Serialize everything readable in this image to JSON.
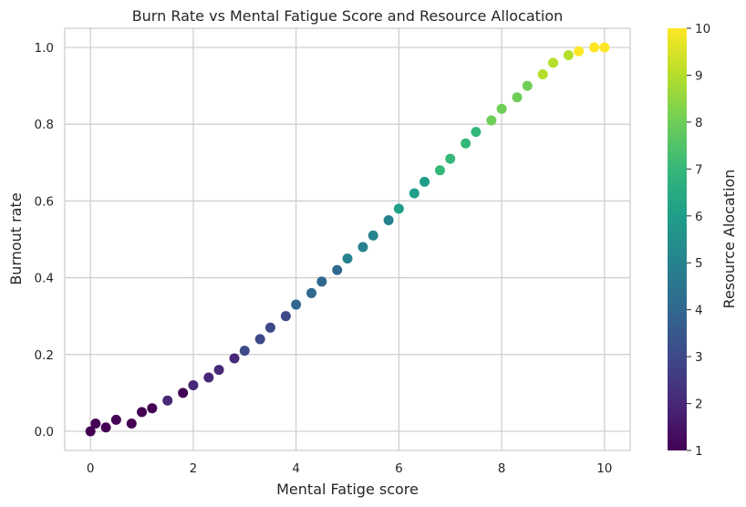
{
  "chart_data": {
    "type": "scatter",
    "title": "Burn Rate vs Mental Fatigue Score and Resource Allocation",
    "xlabel": "Mental Fatige score",
    "ylabel": "Burnout rate",
    "xlim": [
      -0.5,
      10.5
    ],
    "ylim": [
      -0.05,
      1.05
    ],
    "xticks": [
      0,
      2,
      4,
      6,
      8,
      10
    ],
    "yticks": [
      0.0,
      0.2,
      0.4,
      0.6,
      0.8,
      1.0
    ],
    "xtick_labels": [
      "0",
      "2",
      "4",
      "6",
      "8",
      "10"
    ],
    "ytick_labels": [
      "0.0",
      "0.2",
      "0.4",
      "0.6",
      "0.8",
      "1.0"
    ],
    "grid": true,
    "colormap": "viridis",
    "colorbar": {
      "label": "Resource Alocation",
      "range": [
        1,
        10
      ],
      "ticks": [
        1,
        2,
        3,
        4,
        5,
        6,
        7,
        8,
        9,
        10
      ],
      "tick_labels": [
        "1",
        "2",
        "3",
        "4",
        "5",
        "6",
        "7",
        "8",
        "9",
        "10"
      ]
    },
    "series": [
      {
        "color_by": "Resource Alocation",
        "points": [
          [
            0.0,
            0.0,
            1
          ],
          [
            0.1,
            0.02,
            1
          ],
          [
            0.3,
            0.01,
            1
          ],
          [
            0.5,
            0.03,
            1
          ],
          [
            0.8,
            0.02,
            1
          ],
          [
            1.0,
            0.05,
            1
          ],
          [
            1.2,
            0.06,
            1
          ],
          [
            1.5,
            0.08,
            2
          ],
          [
            1.8,
            0.1,
            1
          ],
          [
            2.0,
            0.12,
            2
          ],
          [
            2.3,
            0.14,
            2
          ],
          [
            2.5,
            0.16,
            2
          ],
          [
            2.8,
            0.19,
            2
          ],
          [
            3.0,
            0.21,
            3
          ],
          [
            3.3,
            0.24,
            3
          ],
          [
            3.5,
            0.27,
            3
          ],
          [
            3.8,
            0.3,
            3
          ],
          [
            4.0,
            0.33,
            4
          ],
          [
            4.3,
            0.36,
            4
          ],
          [
            4.5,
            0.39,
            4
          ],
          [
            4.8,
            0.42,
            4
          ],
          [
            5.0,
            0.45,
            5
          ],
          [
            5.3,
            0.48,
            5
          ],
          [
            5.5,
            0.51,
            5
          ],
          [
            5.8,
            0.55,
            5
          ],
          [
            6.0,
            0.58,
            6
          ],
          [
            6.3,
            0.62,
            6
          ],
          [
            6.5,
            0.65,
            6
          ],
          [
            6.8,
            0.68,
            7
          ],
          [
            7.0,
            0.71,
            7
          ],
          [
            7.3,
            0.75,
            7
          ],
          [
            7.5,
            0.78,
            7
          ],
          [
            7.8,
            0.81,
            8
          ],
          [
            8.0,
            0.84,
            8
          ],
          [
            8.3,
            0.87,
            8
          ],
          [
            8.5,
            0.9,
            8
          ],
          [
            8.8,
            0.93,
            9
          ],
          [
            9.0,
            0.96,
            9
          ],
          [
            9.3,
            0.98,
            9
          ],
          [
            9.5,
            0.99,
            10
          ],
          [
            9.8,
            1.0,
            10
          ],
          [
            10.0,
            1.0,
            10
          ]
        ]
      }
    ]
  }
}
